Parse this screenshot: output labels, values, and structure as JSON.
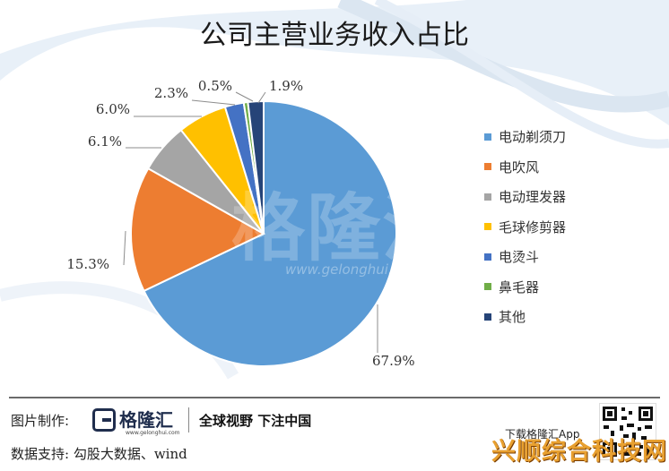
{
  "chart_data": {
    "type": "pie",
    "title": "公司主营业务收入占比",
    "categories": [
      "电动剃须刀",
      "电吹风",
      "电动理发器",
      "毛球修剪器",
      "电烫斗",
      "鼻毛器",
      "其他"
    ],
    "values": [
      67.9,
      15.3,
      6.1,
      6.0,
      2.3,
      0.5,
      1.9
    ],
    "labels": [
      "67.9%",
      "15.3%",
      "6.1%",
      "6.0%",
      "2.3%",
      "0.5%",
      "1.9%"
    ],
    "colors": [
      "#5b9bd5",
      "#ed7d31",
      "#a5a5a5",
      "#ffc000",
      "#4472c4",
      "#70ad47",
      "#264478"
    ],
    "legend_position": "right"
  },
  "watermark": {
    "text": "格隆汇",
    "url": "www.gelonghui.com"
  },
  "footer": {
    "label": "图片制作:",
    "brand_name": "格隆汇",
    "brand_url": "www.gelonghui.com",
    "slogan": "全球视野 下注中国",
    "source": "数据支持: 勾股大数据、wind",
    "download": "下载格隆汇App",
    "overlay_watermark": "兴顺综合科技网"
  }
}
